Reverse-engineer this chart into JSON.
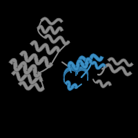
{
  "background_color": "#000000",
  "gray_color": "#8a8a8a",
  "gray_dark": "#555555",
  "blue_color": "#3b8fc4",
  "blue_dark": "#1a5a8a",
  "figsize": [
    2.0,
    2.0
  ],
  "dpi": 100
}
